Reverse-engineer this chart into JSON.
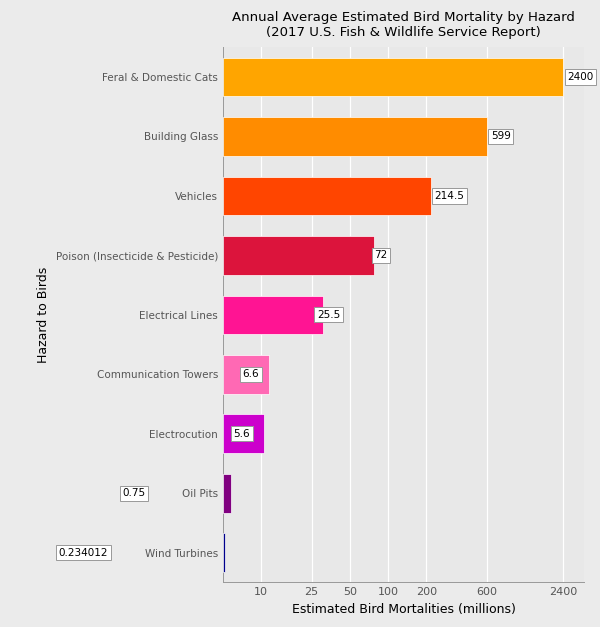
{
  "title_line1": "Annual Average Estimated Bird Mortality by Hazard",
  "title_line2": "(2017 U.S. Fish & Wildlife Service Report)",
  "xlabel": "Estimated Bird Mortalities (millions)",
  "ylabel": "Hazard to Birds",
  "categories": [
    "Wind Turbines",
    "Oil Pits",
    "Electrocution",
    "Communication Towers",
    "Electrical Lines",
    "Poison (Insecticide & Pesticide)",
    "Vehicles",
    "Building Glass",
    "Feral & Domestic Cats"
  ],
  "values": [
    0.234012,
    0.75,
    5.6,
    6.6,
    25.5,
    72,
    214.5,
    599,
    2400
  ],
  "labels": [
    "0.234012",
    "0.75",
    "5.6",
    "6.6",
    "25.5",
    "72",
    "214.5",
    "599",
    "2400"
  ],
  "bar_colors": [
    "#00008B",
    "#800080",
    "#CC00CC",
    "#FF69B4",
    "#FF1493",
    "#DC143C",
    "#FF4500",
    "#FF8C00",
    "#FFA500"
  ],
  "background_color": "#EBEBEB",
  "plot_bg_color": "#E8E8E8",
  "xticks": [
    10,
    25,
    50,
    100,
    200,
    600,
    2400
  ],
  "xtick_labels": [
    "10",
    "25",
    "50",
    "100",
    "200",
    "600",
    "2400"
  ],
  "xmin": 5,
  "xmax": 3500
}
